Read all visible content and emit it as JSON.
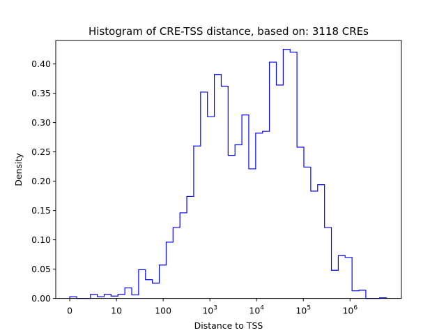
{
  "chart_data": {
    "type": "bar",
    "title": "Histogram of CRE-TSS distance, based on: 3118 CREs",
    "xlabel": "Distance to TSS",
    "ylabel": "Density",
    "x_scale": "log10(distance + 1)",
    "xlim": [
      -0.3,
      7.1
    ],
    "ylim": [
      0.0,
      0.44
    ],
    "grid": false,
    "legend": "none",
    "series_color": "#0000ff",
    "x_ticks": [
      {
        "value": 0,
        "label": "0"
      },
      {
        "value": 1,
        "label": "10"
      },
      {
        "value": 2,
        "label": "100"
      },
      {
        "value": 3,
        "label": "10",
        "sup": "3"
      },
      {
        "value": 4,
        "label": "10",
        "sup": "4"
      },
      {
        "value": 5,
        "label": "10",
        "sup": "5"
      },
      {
        "value": 6,
        "label": "10",
        "sup": "6"
      }
    ],
    "y_ticks": [
      {
        "value": 0.0,
        "label": "0.00"
      },
      {
        "value": 0.05,
        "label": "0.05"
      },
      {
        "value": 0.1,
        "label": "0.10"
      },
      {
        "value": 0.15,
        "label": "0.15"
      },
      {
        "value": 0.2,
        "label": "0.20"
      },
      {
        "value": 0.25,
        "label": "0.25"
      },
      {
        "value": 0.3,
        "label": "0.30"
      },
      {
        "value": 0.35,
        "label": "0.35"
      },
      {
        "value": 0.4,
        "label": "0.40"
      }
    ],
    "bin_edges": [
      0.0,
      0.1474,
      0.2948,
      0.4422,
      0.5896,
      0.737,
      0.8844,
      1.0318,
      1.1792,
      1.3266,
      1.474,
      1.6214,
      1.7688,
      1.9162,
      2.0636,
      2.211,
      2.3584,
      2.5058,
      2.6532,
      2.8006,
      2.948,
      3.0954,
      3.2428,
      3.3902,
      3.5376,
      3.685,
      3.8324,
      3.9798,
      4.1272,
      4.2746,
      4.422,
      4.5694,
      4.7168,
      4.8642,
      5.0116,
      5.159,
      5.3064,
      5.4538,
      5.6012,
      5.7486,
      5.896,
      6.0434,
      6.1908,
      6.3382,
      6.4856,
      6.633,
      6.7804
    ],
    "values": [
      0.003,
      0.0,
      0.0,
      0.007,
      0.003,
      0.007,
      0.004,
      0.007,
      0.018,
      0.006,
      0.049,
      0.032,
      0.026,
      0.057,
      0.096,
      0.121,
      0.146,
      0.174,
      0.26,
      0.352,
      0.31,
      0.382,
      0.362,
      0.244,
      0.262,
      0.313,
      0.221,
      0.282,
      0.285,
      0.403,
      0.364,
      0.425,
      0.42,
      0.258,
      0.224,
      0.183,
      0.194,
      0.121,
      0.048,
      0.073,
      0.07,
      0.013,
      0.014,
      0.0,
      0.0,
      0.001
    ]
  }
}
